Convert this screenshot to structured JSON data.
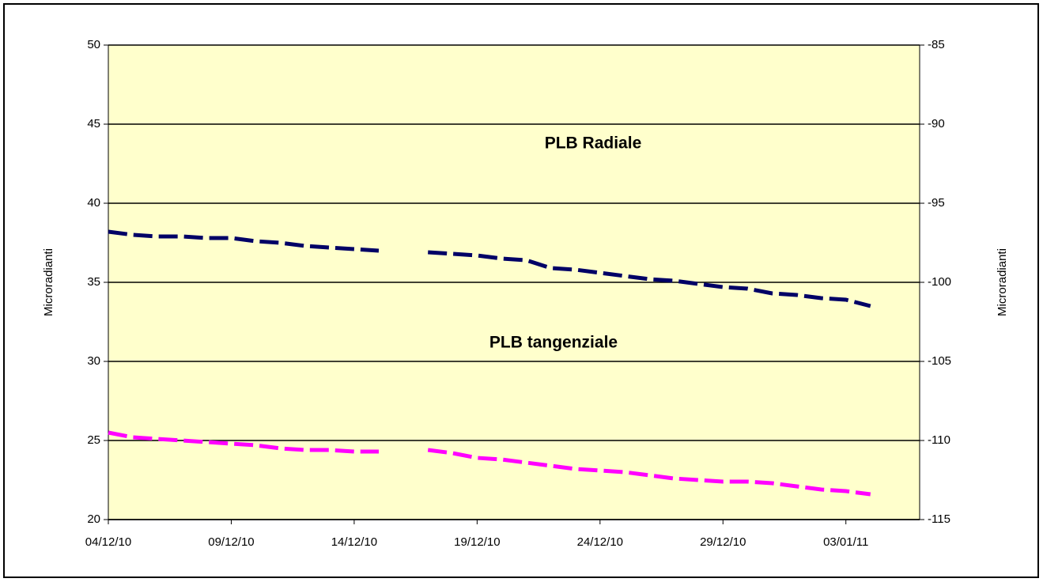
{
  "chart_data": {
    "type": "line",
    "x": [
      "2010-12-04",
      "2010-12-05",
      "2010-12-06",
      "2010-12-07",
      "2010-12-08",
      "2010-12-09",
      "2010-12-10",
      "2010-12-11",
      "2010-12-12",
      "2010-12-13",
      "2010-12-14",
      "2010-12-15",
      "2010-12-16",
      "2010-12-17",
      "2010-12-18",
      "2010-12-19",
      "2010-12-20",
      "2010-12-21",
      "2010-12-22",
      "2010-12-23",
      "2010-12-24",
      "2010-12-25",
      "2010-12-26",
      "2010-12-27",
      "2010-12-28",
      "2010-12-29",
      "2010-12-30",
      "2010-12-31",
      "2011-01-01",
      "2011-01-02",
      "2011-01-03",
      "2011-01-04"
    ],
    "series": [
      {
        "name": "PLB Radiale",
        "color": "#000066",
        "values": [
          38.2,
          38.0,
          37.9,
          37.9,
          37.8,
          37.8,
          37.6,
          37.5,
          37.3,
          37.2,
          37.1,
          37.0,
          null,
          36.9,
          36.8,
          36.7,
          36.5,
          36.4,
          35.9,
          35.8,
          35.6,
          35.4,
          35.2,
          35.1,
          34.9,
          34.7,
          34.6,
          34.3,
          34.2,
          34.0,
          33.9,
          33.5
        ]
      },
      {
        "name": "PLB tangenziale",
        "color": "#ff00ff",
        "axis": "y2",
        "values": [
          -109.5,
          -109.8,
          -109.9,
          -110.0,
          -110.1,
          -110.2,
          -110.3,
          -110.5,
          -110.6,
          -110.6,
          -110.7,
          -110.7,
          null,
          -110.6,
          -110.8,
          -111.1,
          -111.2,
          -111.4,
          -111.6,
          -111.8,
          -111.9,
          -112.0,
          -112.2,
          -112.4,
          -112.5,
          -112.6,
          -112.6,
          -112.7,
          -112.9,
          -113.1,
          -113.2,
          -113.4
        ]
      }
    ],
    "ylabel": "Microradianti",
    "y2label": "Microradianti",
    "xlim": [
      "2010-12-04",
      "2011-01-06"
    ],
    "xticks": [
      {
        "value": "2010-12-04",
        "label": "04/12/10"
      },
      {
        "value": "2010-12-09",
        "label": "09/12/10"
      },
      {
        "value": "2010-12-14",
        "label": "14/12/10"
      },
      {
        "value": "2010-12-19",
        "label": "19/12/10"
      },
      {
        "value": "2010-12-24",
        "label": "24/12/10"
      },
      {
        "value": "2010-12-29",
        "label": "29/12/10"
      },
      {
        "value": "2011-01-03",
        "label": "03/01/11"
      }
    ],
    "ylim": [
      20,
      50
    ],
    "yticks": [
      20,
      25,
      30,
      35,
      40,
      45,
      50
    ],
    "y2lim": [
      -115,
      -85
    ],
    "y2ticks": [
      -115,
      -110,
      -105,
      -100,
      -95,
      -90,
      -85
    ],
    "grid": true
  }
}
